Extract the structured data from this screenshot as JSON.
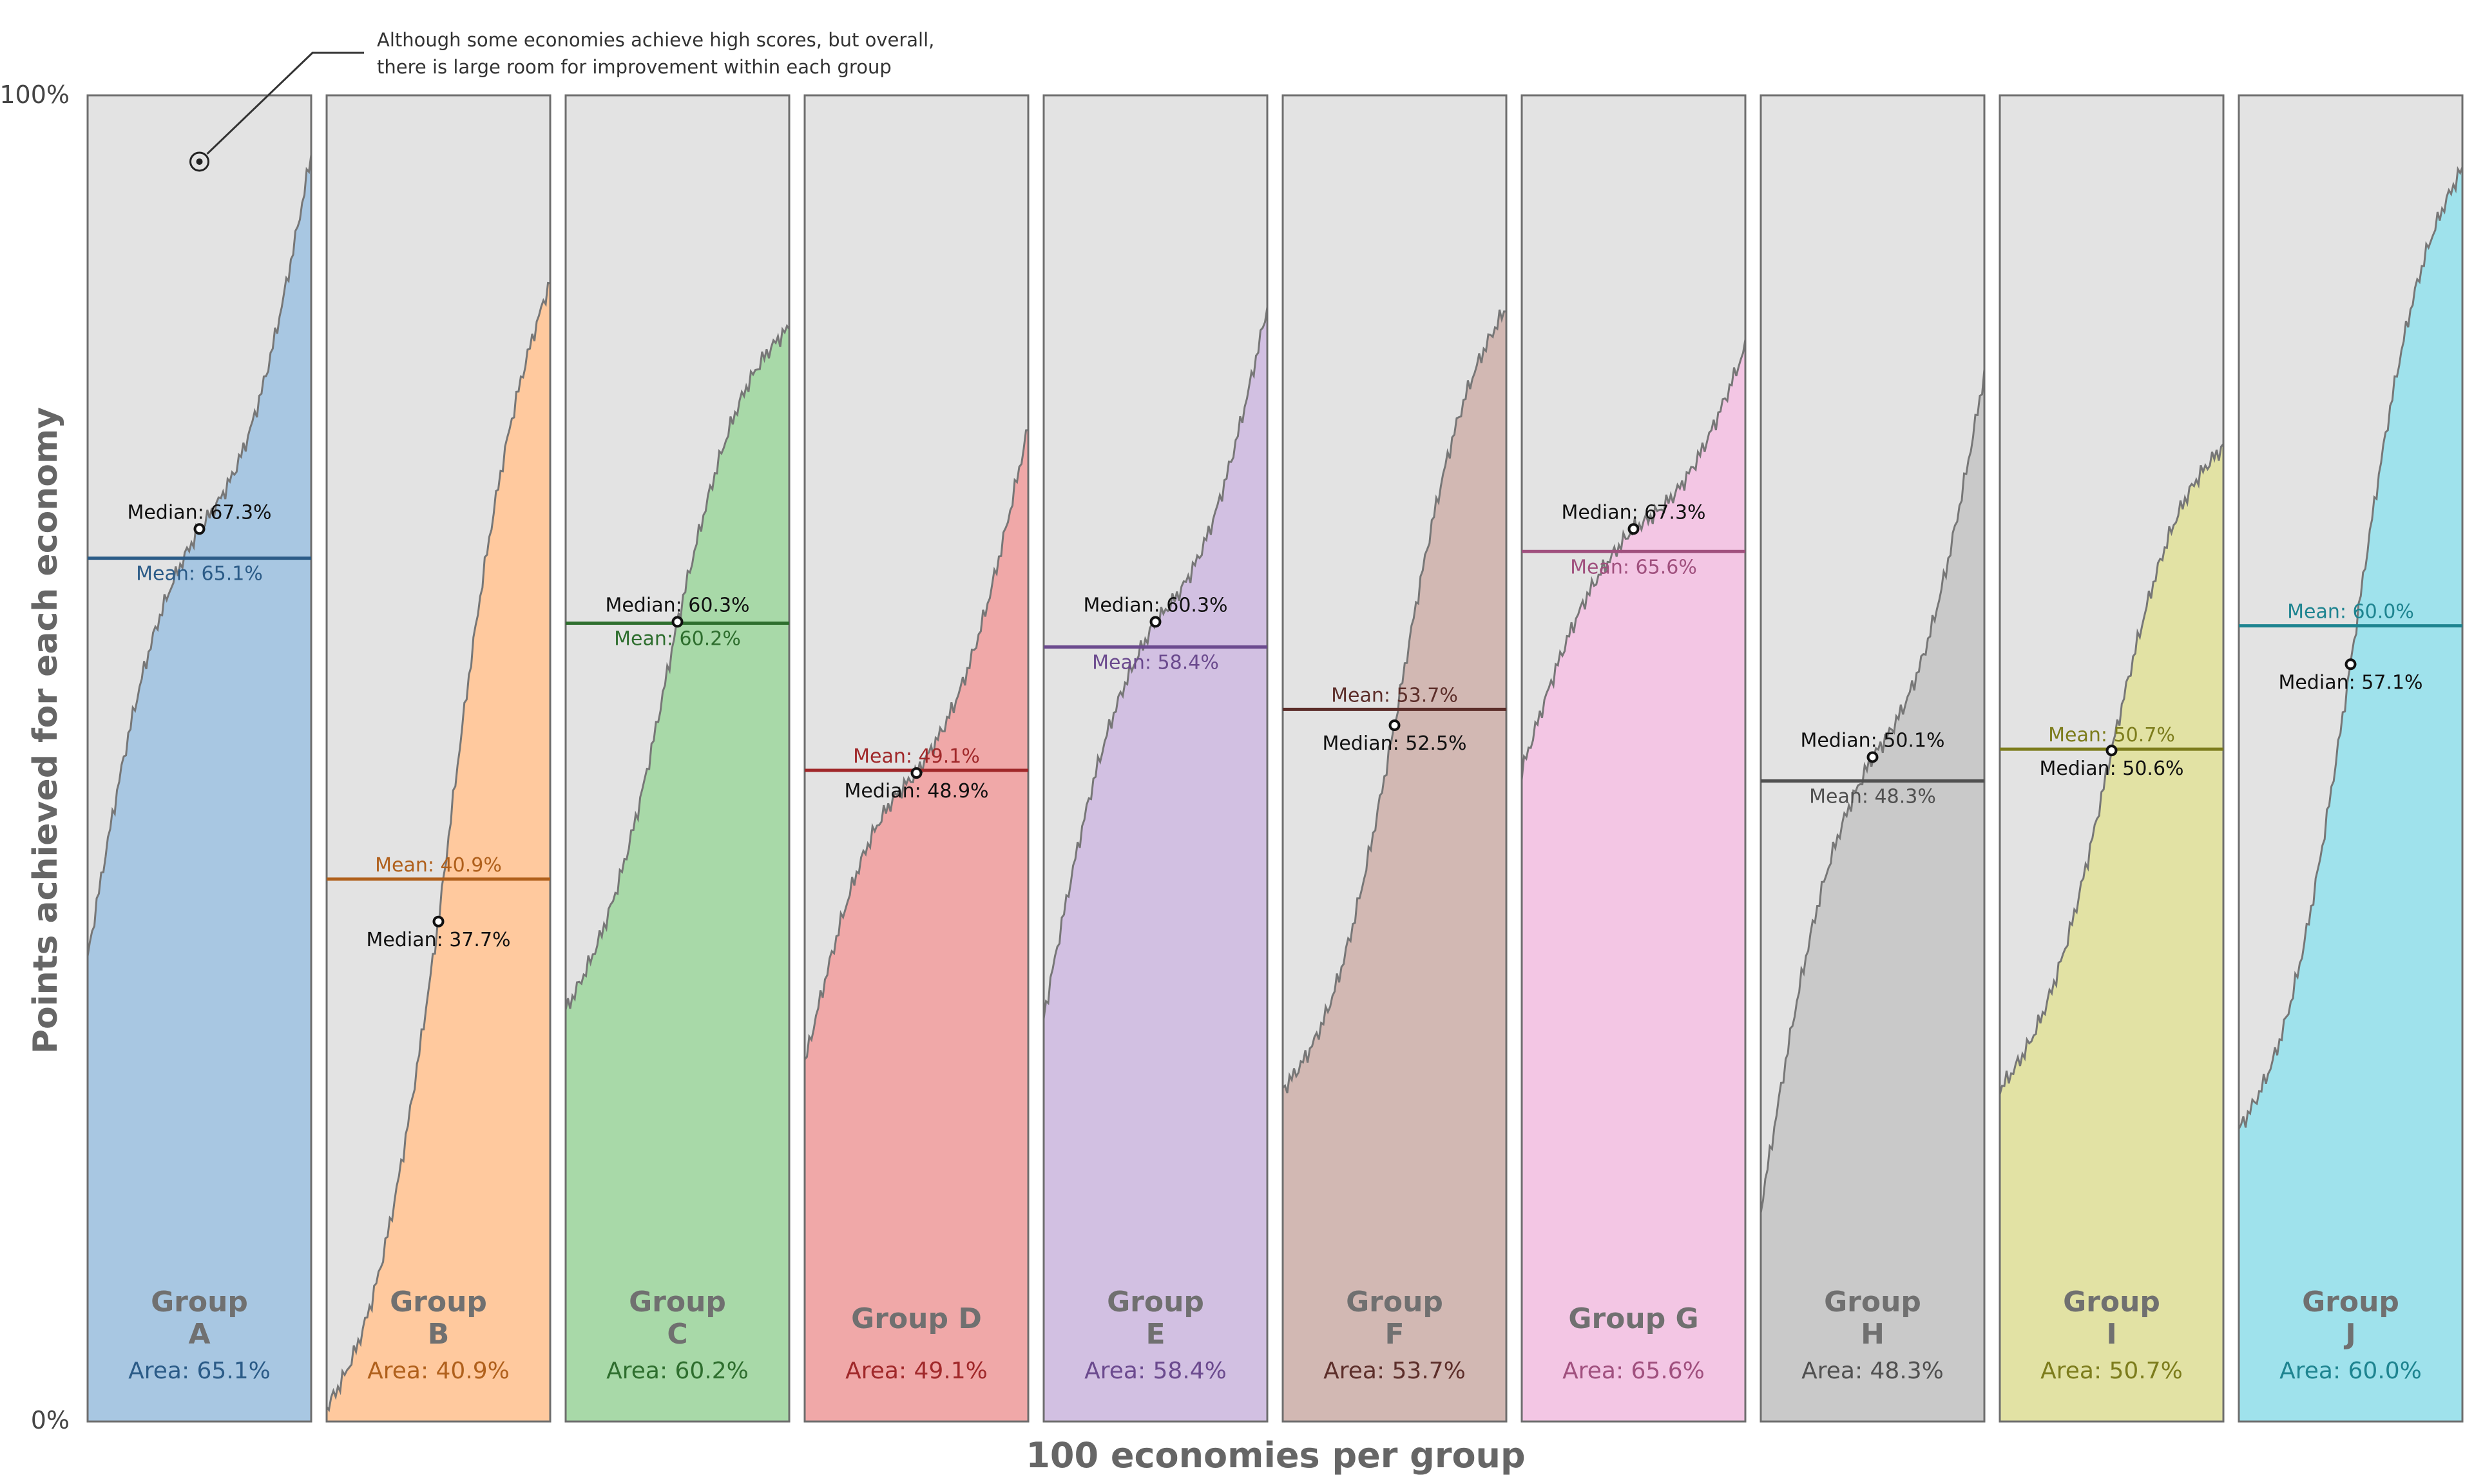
{
  "chart_data": {
    "type": "area",
    "xlabel": "100 economies per group",
    "ylabel": "Points achieved for each economy",
    "yticks": [
      "0%",
      "100%"
    ],
    "ylim": [
      0,
      100
    ],
    "annotation": {
      "lines": [
        "Although some economies achieve high scores, but overall,",
        "there is large room for improvement within each group"
      ],
      "point_value": 95
    },
    "mean_prefix": "Mean: ",
    "median_prefix": "Median: ",
    "area_prefix": "Area: ",
    "groups": [
      {
        "title": [
          "Group",
          "A"
        ],
        "color": "#a8c7e2",
        "line": "#2b5b87",
        "mean": 65.1,
        "median": 67.3,
        "area": "65.1%",
        "mean_text": "65.1%",
        "median_text": "67.3%",
        "min": 35.0,
        "max": 95.5,
        "mean_label_below": true,
        "median_label_below": false
      },
      {
        "title": [
          "Group",
          "B"
        ],
        "color": "#ffc99e",
        "line": "#b0601c",
        "mean": 40.9,
        "median": 37.7,
        "area": "40.9%",
        "mean_text": "40.9%",
        "median_text": "37.7%",
        "min": 1.0,
        "max": 86.0,
        "mean_label_below": false,
        "median_label_below": true
      },
      {
        "title": [
          "Group",
          "C"
        ],
        "color": "#a8d9a8",
        "line": "#2e6e2e",
        "mean": 60.2,
        "median": 60.3,
        "area": "60.2%",
        "mean_text": "60.2%",
        "median_text": "60.3%",
        "min": 31.0,
        "max": 82.5,
        "mean_label_below": true,
        "median_label_below": false
      },
      {
        "title": [
          "Group D"
        ],
        "color": "#f0a8a8",
        "line": "#a0282a",
        "mean": 49.1,
        "median": 48.9,
        "area": "49.1%",
        "mean_text": "49.1%",
        "median_text": "48.9%",
        "min": 27.0,
        "max": 75.0,
        "mean_label_below": false,
        "median_label_below": true
      },
      {
        "title": [
          "Group",
          "E"
        ],
        "color": "#d2c0e2",
        "line": "#6b4a8e",
        "mean": 58.4,
        "median": 60.3,
        "area": "58.4%",
        "mean_text": "58.4%",
        "median_text": "60.3%",
        "min": 30.5,
        "max": 84.0,
        "mean_label_below": true,
        "median_label_below": false
      },
      {
        "title": [
          "Group",
          "F"
        ],
        "color": "#d2b8b3",
        "line": "#5c2e2a",
        "mean": 53.7,
        "median": 52.5,
        "area": "53.7%",
        "mean_text": "53.7%",
        "median_text": "52.5%",
        "min": 25.0,
        "max": 84.0,
        "mean_label_below": false,
        "median_label_below": true
      },
      {
        "title": [
          "Group G"
        ],
        "color": "#f3c6e4",
        "line": "#a0507e",
        "mean": 65.6,
        "median": 67.3,
        "area": "65.6%",
        "mean_text": "65.6%",
        "median_text": "67.3%",
        "min": 49.0,
        "max": 81.0,
        "mean_label_below": true,
        "median_label_below": false
      },
      {
        "title": [
          "Group",
          "H"
        ],
        "color": "#c9c9c9",
        "line": "#505050",
        "mean": 48.3,
        "median": 50.1,
        "area": "48.3%",
        "mean_text": "48.3%",
        "median_text": "50.1%",
        "min": 16.0,
        "max": 79.0,
        "mean_label_below": true,
        "median_label_below": false
      },
      {
        "title": [
          "Group",
          "I"
        ],
        "color": "#e2e2a4",
        "line": "#7c7c1c",
        "mean": 50.7,
        "median": 50.6,
        "area": "50.7%",
        "mean_text": "50.7%",
        "median_text": "50.6%",
        "min": 25.0,
        "max": 73.5,
        "mean_label_below": false,
        "median_label_below": true
      },
      {
        "title": [
          "Group",
          "J"
        ],
        "color": "#9fe2ec",
        "line": "#1e8490",
        "mean": 60.0,
        "median": 57.1,
        "area": "60.0%",
        "mean_text": "60.0%",
        "median_text": "57.1%",
        "min": 22.0,
        "max": 94.5,
        "mean_label_below": false,
        "median_label_below": true
      }
    ]
  }
}
